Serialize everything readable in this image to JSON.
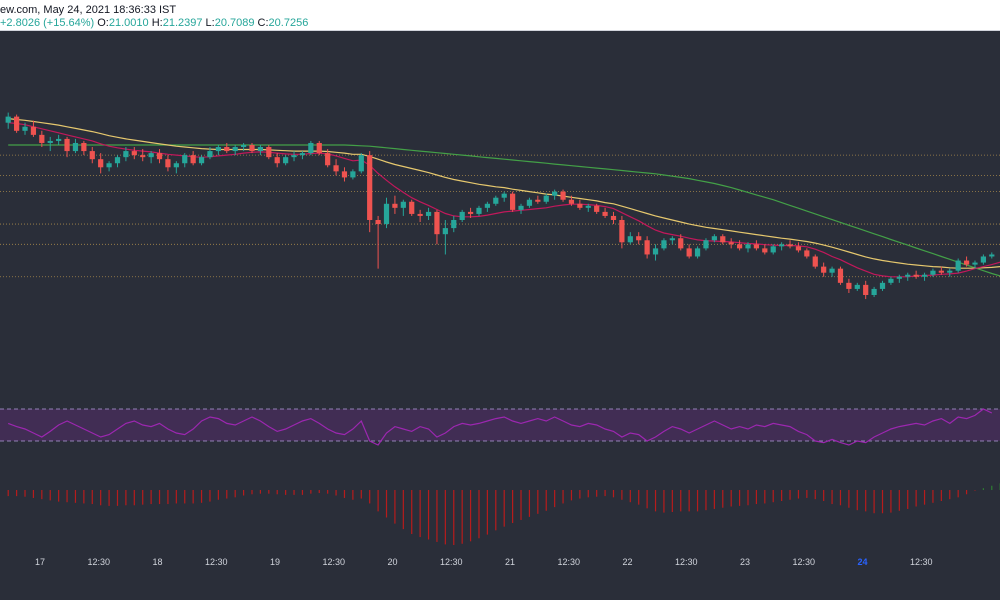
{
  "header": {
    "source_time": "ew.com, May 24, 2021 18:36:33 IST",
    "change": "+2.8026 (+15.64%)",
    "ohlc": {
      "o_label": "O:",
      "o_value": "21.0010",
      "h_label": "H:",
      "h_value": "21.2397",
      "l_label": "L:",
      "l_value": "20.7089",
      "c_label": "C:",
      "c_value": "20.7256"
    }
  },
  "colors": {
    "background": "#2a2e39",
    "candle_up": "#26a69a",
    "candle_down": "#ef5350",
    "ma_fast": "#c2185b",
    "ma_mid": "#e6c86e",
    "ma_slow": "#43a047",
    "rsi_line": "#9c27b0",
    "rsi_band": "#4a2d5e",
    "hist_up": "#2e7d32",
    "hist_down": "#b71c1c",
    "level_line": "#c8a050"
  },
  "chart_data": {
    "type": "candlestick",
    "x_axis_labels": [
      "17",
      "12:30",
      "18",
      "12:30",
      "19",
      "12:30",
      "20",
      "12:30",
      "21",
      "12:30",
      "22",
      "12:30",
      "23",
      "12:30",
      "24",
      "12:30"
    ],
    "bold_x_labels": [
      "24"
    ],
    "y_range": [
      20.2,
      27.6
    ],
    "horizontal_levels": [
      25.5,
      25.0,
      24.6,
      23.8,
      23.3,
      22.5
    ],
    "candles": [
      [
        26.3,
        26.55,
        26.15,
        26.45
      ],
      [
        26.45,
        26.5,
        26.05,
        26.1
      ],
      [
        26.1,
        26.3,
        26.0,
        26.2
      ],
      [
        26.2,
        26.35,
        25.95,
        26.0
      ],
      [
        26.0,
        26.1,
        25.7,
        25.8
      ],
      [
        25.8,
        25.95,
        25.6,
        25.85
      ],
      [
        25.85,
        26.0,
        25.75,
        25.9
      ],
      [
        25.9,
        25.95,
        25.45,
        25.6
      ],
      [
        25.6,
        25.9,
        25.55,
        25.8
      ],
      [
        25.8,
        25.85,
        25.5,
        25.6
      ],
      [
        25.6,
        25.7,
        25.3,
        25.4
      ],
      [
        25.4,
        25.55,
        25.05,
        25.2
      ],
      [
        25.2,
        25.35,
        25.1,
        25.3
      ],
      [
        25.3,
        25.5,
        25.2,
        25.45
      ],
      [
        25.45,
        25.7,
        25.35,
        25.6
      ],
      [
        25.6,
        25.7,
        25.4,
        25.5
      ],
      [
        25.5,
        25.65,
        25.35,
        25.45
      ],
      [
        25.45,
        25.6,
        25.3,
        25.55
      ],
      [
        25.55,
        25.65,
        25.3,
        25.4
      ],
      [
        25.4,
        25.5,
        25.1,
        25.2
      ],
      [
        25.2,
        25.35,
        25.05,
        25.3
      ],
      [
        25.3,
        25.55,
        25.2,
        25.5
      ],
      [
        25.5,
        25.6,
        25.25,
        25.3
      ],
      [
        25.3,
        25.5,
        25.25,
        25.45
      ],
      [
        25.45,
        25.7,
        25.4,
        25.6
      ],
      [
        25.6,
        25.75,
        25.5,
        25.7
      ],
      [
        25.7,
        25.8,
        25.55,
        25.6
      ],
      [
        25.6,
        25.75,
        25.5,
        25.7
      ],
      [
        25.7,
        25.8,
        25.6,
        25.75
      ],
      [
        25.75,
        25.8,
        25.55,
        25.6
      ],
      [
        25.6,
        25.75,
        25.5,
        25.7
      ],
      [
        25.7,
        25.75,
        25.4,
        25.45
      ],
      [
        25.45,
        25.55,
        25.2,
        25.3
      ],
      [
        25.3,
        25.5,
        25.25,
        25.45
      ],
      [
        25.45,
        25.6,
        25.35,
        25.5
      ],
      [
        25.5,
        25.6,
        25.4,
        25.55
      ],
      [
        25.55,
        25.85,
        25.5,
        25.8
      ],
      [
        25.8,
        25.85,
        25.5,
        25.55
      ],
      [
        25.55,
        25.65,
        25.2,
        25.25
      ],
      [
        25.25,
        25.4,
        25.0,
        25.1
      ],
      [
        25.1,
        25.2,
        24.85,
        24.95
      ],
      [
        24.95,
        25.15,
        24.9,
        25.1
      ],
      [
        25.1,
        25.55,
        25.05,
        25.5
      ],
      [
        25.5,
        25.6,
        23.6,
        23.9
      ],
      [
        23.9,
        24.0,
        22.7,
        23.8
      ],
      [
        23.8,
        24.45,
        23.7,
        24.3
      ],
      [
        24.3,
        24.5,
        24.05,
        24.2
      ],
      [
        24.2,
        24.4,
        24.0,
        24.35
      ],
      [
        24.35,
        24.4,
        24.0,
        24.05
      ],
      [
        24.05,
        24.15,
        23.85,
        24.0
      ],
      [
        24.0,
        24.2,
        23.9,
        24.1
      ],
      [
        24.1,
        24.15,
        23.3,
        23.55
      ],
      [
        23.55,
        23.9,
        23.05,
        23.7
      ],
      [
        23.7,
        24.0,
        23.6,
        23.9
      ],
      [
        23.9,
        24.15,
        23.85,
        24.1
      ],
      [
        24.1,
        24.2,
        23.95,
        24.05
      ],
      [
        24.05,
        24.25,
        24.0,
        24.2
      ],
      [
        24.2,
        24.35,
        24.1,
        24.3
      ],
      [
        24.3,
        24.5,
        24.25,
        24.45
      ],
      [
        24.45,
        24.6,
        24.35,
        24.55
      ],
      [
        24.55,
        24.6,
        24.1,
        24.15
      ],
      [
        24.15,
        24.3,
        24.05,
        24.25
      ],
      [
        24.25,
        24.45,
        24.2,
        24.4
      ],
      [
        24.4,
        24.5,
        24.3,
        24.35
      ],
      [
        24.35,
        24.55,
        24.3,
        24.5
      ],
      [
        24.5,
        24.65,
        24.4,
        24.6
      ],
      [
        24.6,
        24.65,
        24.35,
        24.4
      ],
      [
        24.4,
        24.5,
        24.25,
        24.3
      ],
      [
        24.3,
        24.4,
        24.15,
        24.2
      ],
      [
        24.2,
        24.3,
        24.1,
        24.25
      ],
      [
        24.25,
        24.3,
        24.05,
        24.1
      ],
      [
        24.1,
        24.2,
        23.95,
        24.0
      ],
      [
        24.0,
        24.1,
        23.8,
        23.9
      ],
      [
        23.9,
        24.0,
        23.2,
        23.35
      ],
      [
        23.35,
        23.6,
        23.3,
        23.5
      ],
      [
        23.5,
        23.6,
        23.3,
        23.4
      ],
      [
        23.4,
        23.5,
        22.95,
        23.05
      ],
      [
        23.05,
        23.3,
        22.9,
        23.2
      ],
      [
        23.2,
        23.45,
        23.15,
        23.4
      ],
      [
        23.4,
        23.5,
        23.3,
        23.45
      ],
      [
        23.45,
        23.55,
        23.15,
        23.2
      ],
      [
        23.2,
        23.3,
        22.95,
        23.0
      ],
      [
        23.0,
        23.25,
        22.95,
        23.2
      ],
      [
        23.2,
        23.45,
        23.15,
        23.4
      ],
      [
        23.4,
        23.55,
        23.35,
        23.5
      ],
      [
        23.5,
        23.55,
        23.3,
        23.35
      ],
      [
        23.35,
        23.45,
        23.2,
        23.3
      ],
      [
        23.3,
        23.4,
        23.15,
        23.2
      ],
      [
        23.2,
        23.35,
        23.1,
        23.3
      ],
      [
        23.3,
        23.4,
        23.15,
        23.2
      ],
      [
        23.2,
        23.3,
        23.05,
        23.1
      ],
      [
        23.1,
        23.3,
        23.05,
        23.25
      ],
      [
        23.25,
        23.35,
        23.15,
        23.3
      ],
      [
        23.3,
        23.4,
        23.2,
        23.25
      ],
      [
        23.25,
        23.35,
        23.1,
        23.15
      ],
      [
        23.15,
        23.2,
        22.95,
        23.0
      ],
      [
        23.0,
        23.05,
        22.7,
        22.75
      ],
      [
        22.75,
        22.85,
        22.5,
        22.6
      ],
      [
        22.6,
        22.75,
        22.5,
        22.7
      ],
      [
        22.7,
        22.75,
        22.3,
        22.35
      ],
      [
        22.35,
        22.45,
        22.1,
        22.2
      ],
      [
        22.2,
        22.35,
        22.15,
        22.3
      ],
      [
        22.3,
        22.4,
        21.95,
        22.05
      ],
      [
        22.05,
        22.25,
        22.0,
        22.2
      ],
      [
        22.2,
        22.4,
        22.15,
        22.35
      ],
      [
        22.35,
        22.5,
        22.3,
        22.45
      ],
      [
        22.45,
        22.55,
        22.35,
        22.5
      ],
      [
        22.5,
        22.6,
        22.4,
        22.55
      ],
      [
        22.55,
        22.65,
        22.45,
        22.5
      ],
      [
        22.5,
        22.6,
        22.4,
        22.55
      ],
      [
        22.55,
        22.7,
        22.5,
        22.65
      ],
      [
        22.65,
        22.75,
        22.55,
        22.6
      ],
      [
        22.6,
        22.7,
        22.5,
        22.65
      ],
      [
        22.65,
        22.95,
        22.6,
        22.9
      ],
      [
        22.9,
        23.0,
        22.75,
        22.8
      ],
      [
        22.8,
        22.9,
        22.7,
        22.85
      ],
      [
        22.85,
        23.05,
        22.8,
        23.0
      ],
      [
        23.0,
        23.1,
        22.95,
        23.05
      ]
    ],
    "ma_fast": [
      26.3,
      26.28,
      26.25,
      26.2,
      26.15,
      26.1,
      26.05,
      26.0,
      25.95,
      25.9,
      25.85,
      25.78,
      25.72,
      25.68,
      25.65,
      25.62,
      25.6,
      25.58,
      25.55,
      25.52,
      25.5,
      25.48,
      25.46,
      25.45,
      25.46,
      25.48,
      25.5,
      25.52,
      25.55,
      25.57,
      25.58,
      25.57,
      25.55,
      25.53,
      25.52,
      25.52,
      25.54,
      25.55,
      25.53,
      25.48,
      25.42,
      25.36,
      25.38,
      25.25,
      25.05,
      24.88,
      24.72,
      24.58,
      24.45,
      24.35,
      24.26,
      24.16,
      24.06,
      24.0,
      23.98,
      23.98,
      23.99,
      24.02,
      24.06,
      24.1,
      24.12,
      24.14,
      24.16,
      24.18,
      24.2,
      24.24,
      24.27,
      24.29,
      24.29,
      24.28,
      24.26,
      24.23,
      24.18,
      24.08,
      23.98,
      23.88,
      23.76,
      23.65,
      23.58,
      23.54,
      23.5,
      23.45,
      23.41,
      23.39,
      23.38,
      23.37,
      23.36,
      23.34,
      23.32,
      23.31,
      23.29,
      23.28,
      23.27,
      23.27,
      23.26,
      23.24,
      23.18,
      23.1,
      23.0,
      22.92,
      22.82,
      22.72,
      22.64,
      22.56,
      22.52,
      22.5,
      22.5,
      22.5,
      22.52,
      22.53,
      22.54,
      22.56,
      22.57,
      22.59,
      22.64,
      22.7,
      22.75,
      22.8,
      22.86
    ],
    "ma_mid": [
      26.4,
      26.38,
      26.36,
      26.33,
      26.3,
      26.27,
      26.24,
      26.2,
      26.16,
      26.12,
      26.08,
      26.03,
      25.98,
      25.94,
      25.9,
      25.87,
      25.84,
      25.81,
      25.78,
      25.75,
      25.72,
      25.7,
      25.68,
      25.66,
      25.65,
      25.64,
      25.64,
      25.64,
      25.64,
      25.64,
      25.64,
      25.63,
      25.62,
      25.61,
      25.6,
      25.6,
      25.6,
      25.6,
      25.59,
      25.57,
      25.55,
      25.52,
      25.52,
      25.47,
      25.4,
      25.33,
      25.27,
      25.22,
      25.17,
      25.12,
      25.07,
      25.01,
      24.95,
      24.9,
      24.86,
      24.82,
      24.78,
      24.75,
      24.72,
      24.7,
      24.66,
      24.63,
      24.6,
      24.57,
      24.54,
      24.52,
      24.49,
      24.46,
      24.43,
      24.4,
      24.37,
      24.33,
      24.3,
      24.24,
      24.18,
      24.12,
      24.06,
      24.0,
      23.95,
      23.9,
      23.85,
      23.8,
      23.76,
      23.72,
      23.69,
      23.66,
      23.63,
      23.6,
      23.57,
      23.54,
      23.51,
      23.48,
      23.45,
      23.43,
      23.4,
      23.37,
      23.33,
      23.28,
      23.23,
      23.17,
      23.11,
      23.05,
      22.99,
      22.94,
      22.9,
      22.87,
      22.84,
      22.81,
      22.79,
      22.77,
      22.75,
      22.74,
      22.72,
      22.71,
      22.71,
      22.71,
      22.72,
      22.73,
      22.75
    ],
    "ma_slow": [
      25.75,
      25.75,
      25.75,
      25.75,
      25.75,
      25.75,
      25.75,
      25.75,
      25.75,
      25.75,
      25.75,
      25.75,
      25.75,
      25.75,
      25.75,
      25.75,
      25.75,
      25.75,
      25.75,
      25.75,
      25.75,
      25.75,
      25.75,
      25.75,
      25.75,
      25.75,
      25.75,
      25.75,
      25.75,
      25.75,
      25.75,
      25.75,
      25.75,
      25.75,
      25.75,
      25.75,
      25.75,
      25.75,
      25.75,
      25.75,
      25.75,
      25.74,
      25.73,
      25.72,
      25.7,
      25.68,
      25.66,
      25.64,
      25.62,
      25.6,
      25.58,
      25.56,
      25.54,
      25.52,
      25.5,
      25.48,
      25.46,
      25.44,
      25.42,
      25.4,
      25.38,
      25.36,
      25.34,
      25.32,
      25.3,
      25.28,
      25.26,
      25.24,
      25.22,
      25.2,
      25.18,
      25.16,
      25.14,
      25.12,
      25.1,
      25.08,
      25.06,
      25.04,
      25.01,
      24.98,
      24.95,
      24.92,
      24.88,
      24.84,
      24.8,
      24.75,
      24.7,
      24.64,
      24.58,
      24.52,
      24.46,
      24.4,
      24.33,
      24.26,
      24.19,
      24.12,
      24.05,
      23.98,
      23.91,
      23.84,
      23.77,
      23.7,
      23.63,
      23.56,
      23.49,
      23.42,
      23.35,
      23.28,
      23.21,
      23.14,
      23.07,
      23.0,
      22.93,
      22.86,
      22.79,
      22.72,
      22.65,
      22.58,
      22.52
    ],
    "rsi_range": [
      0,
      100
    ],
    "rsi_bands": [
      70,
      30
    ],
    "rsi": [
      52,
      48,
      45,
      40,
      35,
      42,
      50,
      55,
      50,
      45,
      40,
      35,
      38,
      45,
      52,
      55,
      50,
      48,
      52,
      45,
      40,
      38,
      45,
      55,
      60,
      58,
      52,
      50,
      55,
      60,
      55,
      48,
      42,
      45,
      50,
      55,
      58,
      52,
      45,
      40,
      38,
      45,
      55,
      30,
      25,
      40,
      48,
      45,
      42,
      48,
      45,
      35,
      40,
      48,
      52,
      50,
      52,
      55,
      58,
      60,
      55,
      52,
      55,
      58,
      55,
      60,
      55,
      50,
      48,
      52,
      50,
      45,
      42,
      35,
      40,
      38,
      30,
      35,
      42,
      48,
      45,
      40,
      45,
      50,
      55,
      50,
      45,
      48,
      45,
      50,
      48,
      52,
      50,
      48,
      42,
      38,
      30,
      28,
      32,
      28,
      25,
      30,
      28,
      35,
      40,
      45,
      48,
      50,
      52,
      50,
      55,
      58,
      52,
      60,
      58,
      62,
      70,
      65
    ]
  }
}
